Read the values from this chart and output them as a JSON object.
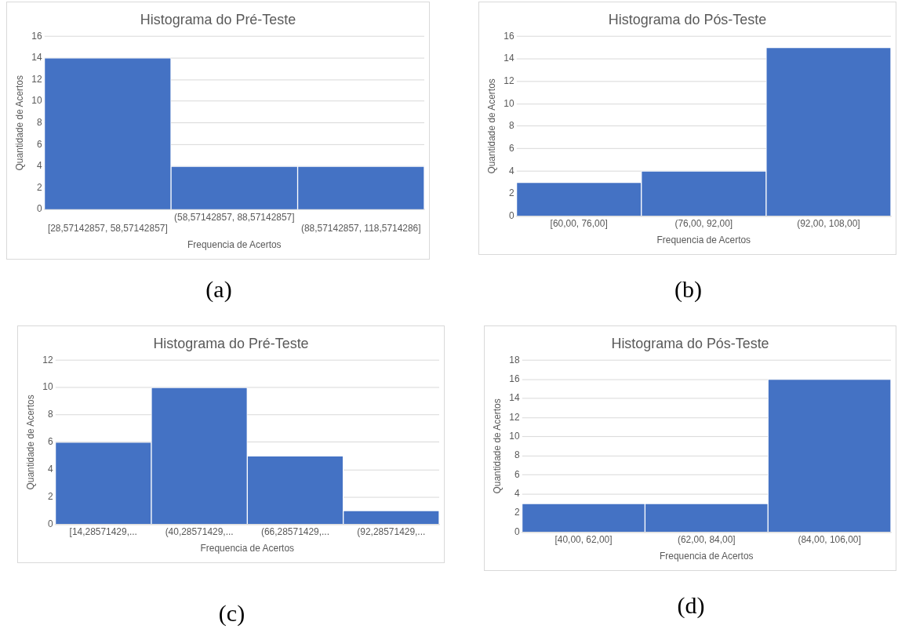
{
  "chart_data": [
    {
      "type": "bar",
      "title": "Histograma do Pré-Teste",
      "xlabel": "Frequencia de Acertos",
      "ylabel": "Quantidade de Acertos",
      "categories": [
        "[28,57142857, 58,57142857]",
        "(58,57142857, 88,57142857]",
        "(88,57142857, 118,5714286]"
      ],
      "values": [
        14,
        4,
        4
      ],
      "color": "#4472c4",
      "ylim": [
        0,
        16
      ],
      "yticks": [
        0,
        2,
        4,
        6,
        8,
        10,
        12,
        14,
        16
      ],
      "grid": "y",
      "legend": false,
      "annotations": [
        "(a)"
      ]
    },
    {
      "type": "bar",
      "title": "Histograma do Pós-Teste",
      "xlabel": "Frequencia de Acertos",
      "ylabel": "Quantidade de Acertos",
      "categories": [
        "[60,00, 76,00]",
        "(76,00, 92,00]",
        "(92,00, 108,00]"
      ],
      "values": [
        3,
        4,
        15
      ],
      "color": "#4472c4",
      "ylim": [
        0,
        16
      ],
      "yticks": [
        0,
        2,
        4,
        6,
        8,
        10,
        12,
        14,
        16
      ],
      "grid": "y",
      "legend": false,
      "annotations": [
        "(b)"
      ]
    },
    {
      "type": "bar",
      "title": "Histograma do Pré-Teste",
      "xlabel": "Frequencia de Acertos",
      "ylabel": "Quantidade de Acertos",
      "categories": [
        "[14,28571429,...",
        "(40,28571429,...",
        "(66,28571429,...",
        "(92,28571429,..."
      ],
      "values": [
        6,
        10,
        5,
        1
      ],
      "color": "#4472c4",
      "ylim": [
        0,
        12
      ],
      "yticks": [
        0,
        2,
        4,
        6,
        8,
        10,
        12
      ],
      "grid": "y",
      "legend": false,
      "annotations": [
        "(c)"
      ]
    },
    {
      "type": "bar",
      "title": "Histograma do Pós-Teste",
      "xlabel": "Frequencia de Acertos",
      "ylabel": "Quantidade de Acertos",
      "categories": [
        "[40,00, 62,00]",
        "(62,00, 84,00]",
        "(84,00, 106,00]"
      ],
      "values": [
        3,
        3,
        16
      ],
      "color": "#4472c4",
      "ylim": [
        0,
        18
      ],
      "yticks": [
        0,
        2,
        4,
        6,
        8,
        10,
        12,
        14,
        16,
        18
      ],
      "grid": "y",
      "legend": false,
      "annotations": [
        "(d)"
      ]
    }
  ]
}
